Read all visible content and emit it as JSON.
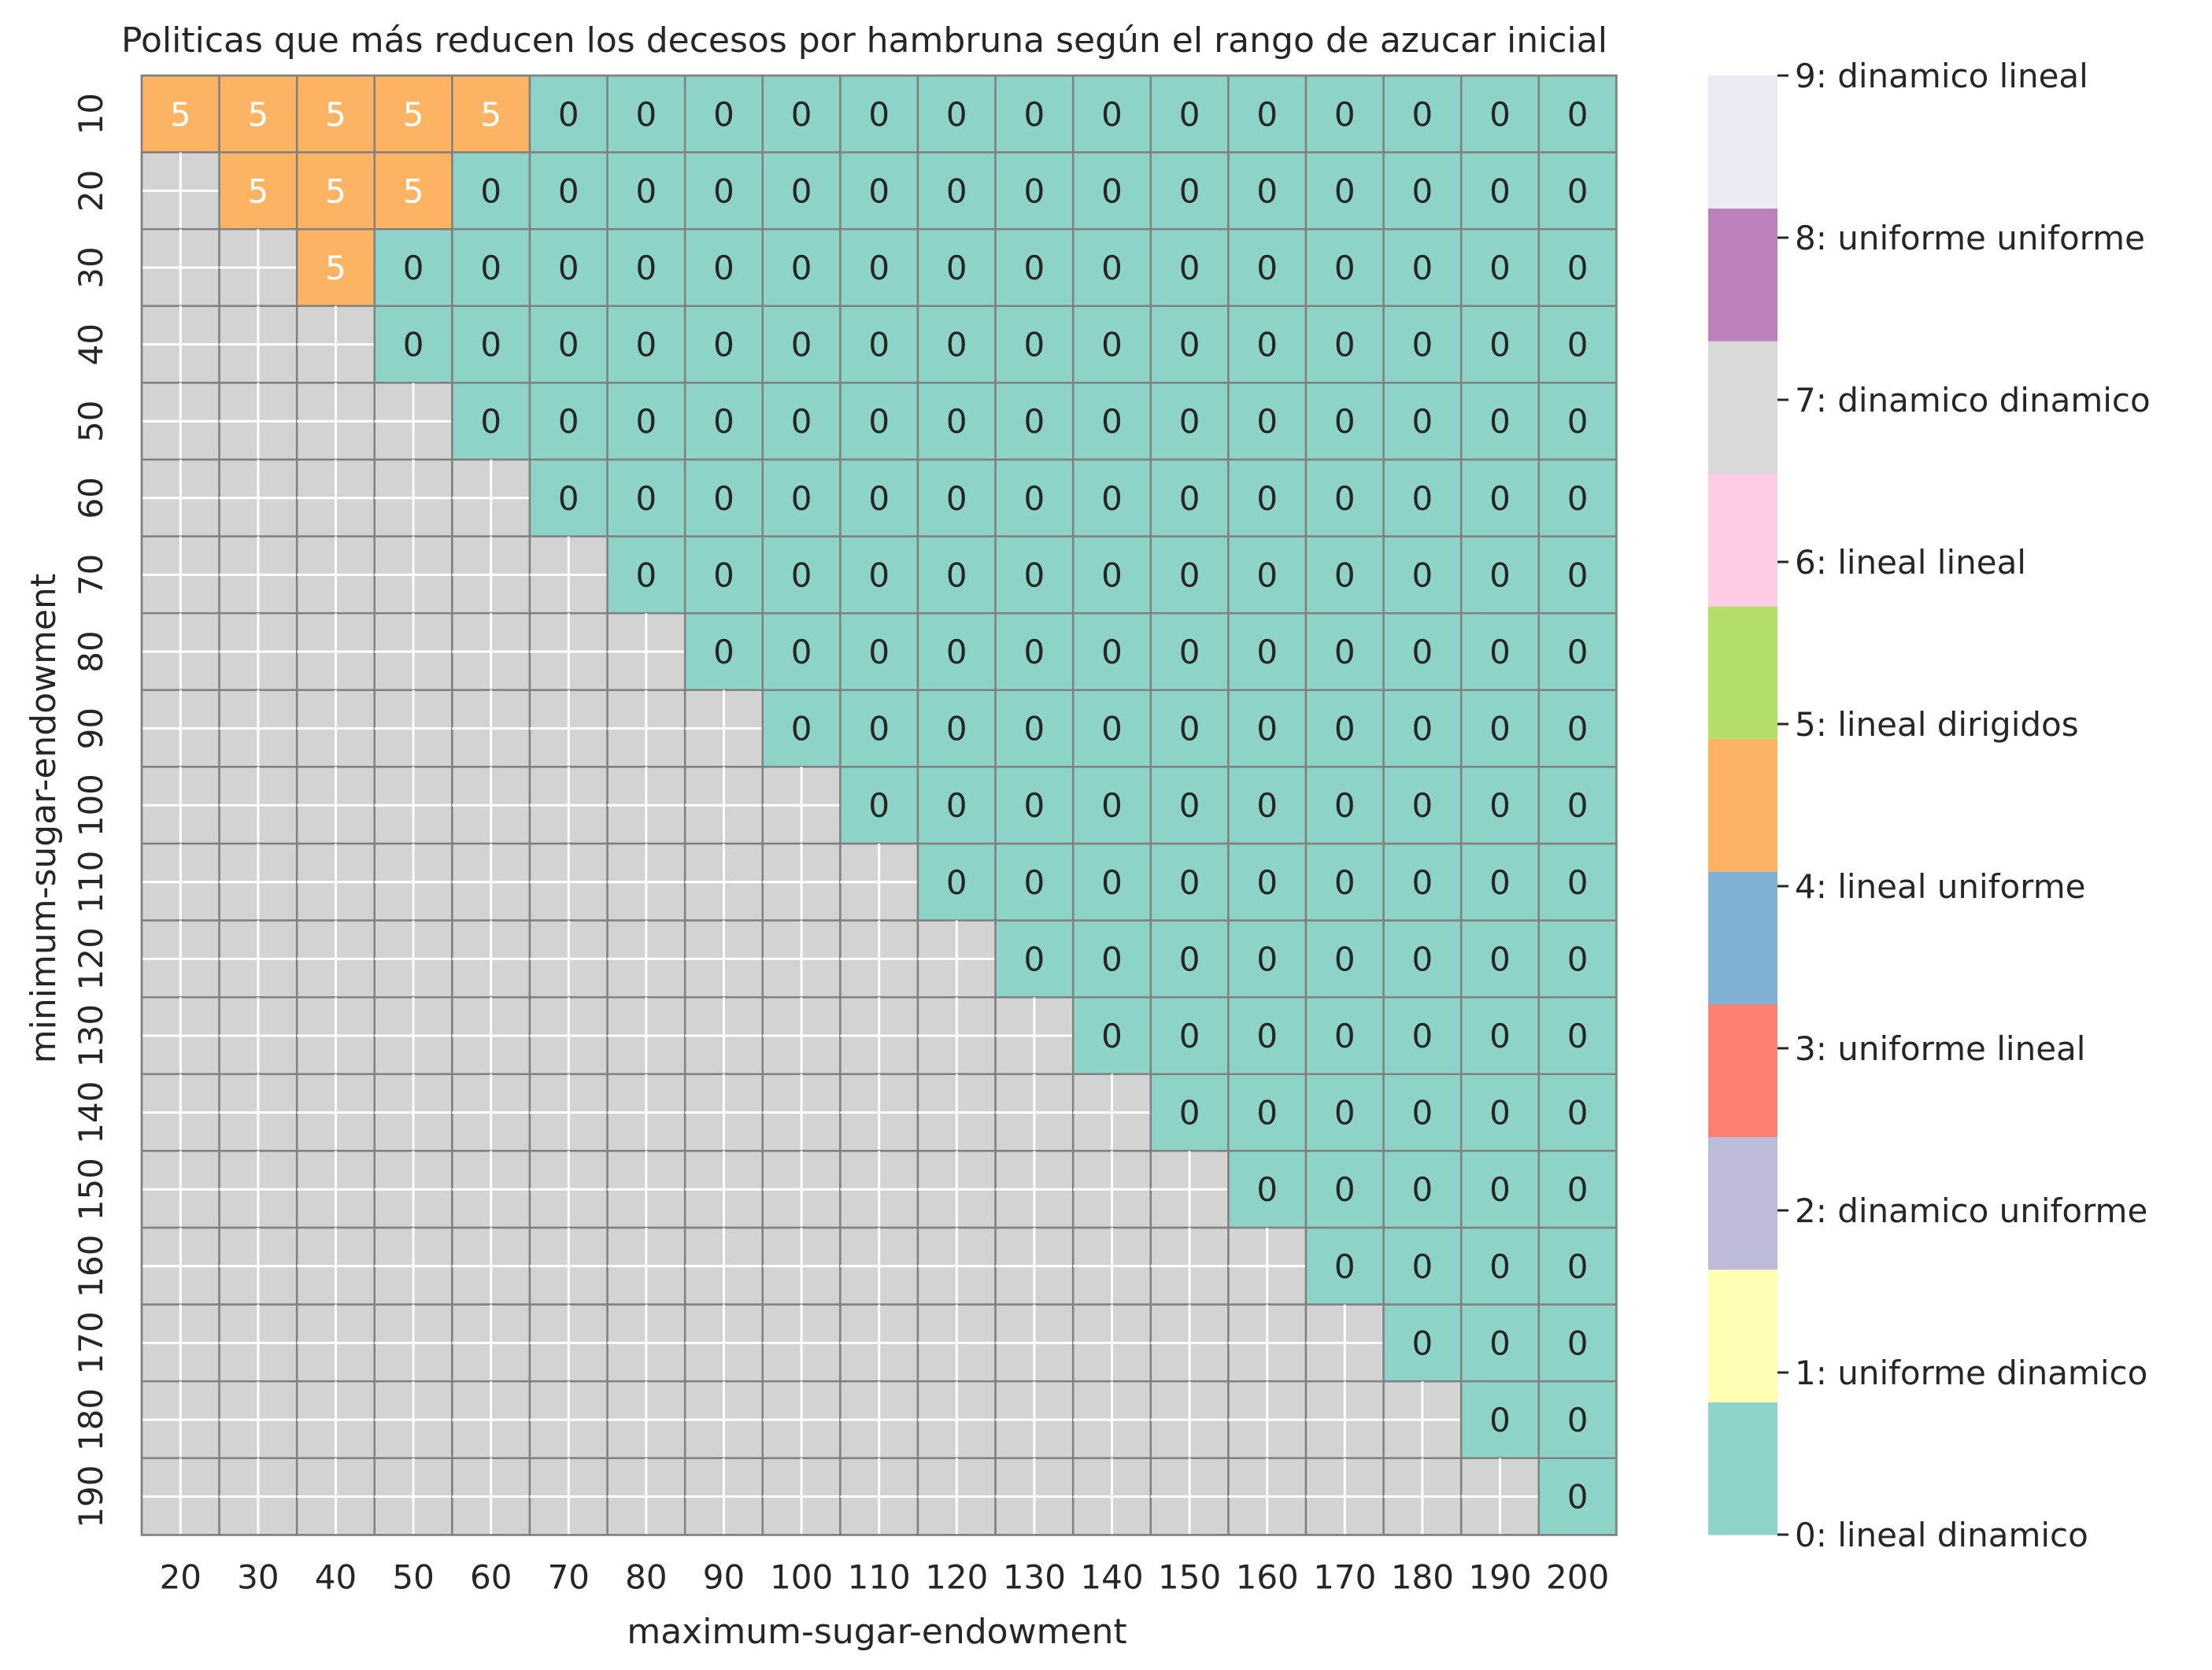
{
  "chart_data": {
    "type": "heatmap",
    "title": "Politicas que más reducen los decesos por hambruna según el rango de azucar inicial",
    "xlabel": "maximum-sugar-endowment",
    "ylabel": "minimum-sugar-endowment",
    "x_ticks": [
      "20",
      "30",
      "40",
      "50",
      "60",
      "70",
      "80",
      "90",
      "100",
      "110",
      "120",
      "130",
      "140",
      "150",
      "160",
      "170",
      "180",
      "190",
      "200"
    ],
    "y_ticks": [
      "10",
      "20",
      "30",
      "40",
      "50",
      "60",
      "70",
      "80",
      "90",
      "100",
      "110",
      "120",
      "130",
      "140",
      "150",
      "160",
      "170",
      "180",
      "190"
    ],
    "x_values": [
      20,
      30,
      40,
      50,
      60,
      70,
      80,
      90,
      100,
      110,
      120,
      130,
      140,
      150,
      160,
      170,
      180,
      190,
      200
    ],
    "y_values": [
      10,
      20,
      30,
      40,
      50,
      60,
      70,
      80,
      90,
      100,
      110,
      120,
      130,
      140,
      150,
      160,
      170,
      180,
      190
    ],
    "values": [
      [
        5,
        5,
        5,
        5,
        5,
        0,
        0,
        0,
        0,
        0,
        0,
        0,
        0,
        0,
        0,
        0,
        0,
        0,
        0
      ],
      [
        null,
        5,
        5,
        5,
        0,
        0,
        0,
        0,
        0,
        0,
        0,
        0,
        0,
        0,
        0,
        0,
        0,
        0,
        0
      ],
      [
        null,
        null,
        5,
        0,
        0,
        0,
        0,
        0,
        0,
        0,
        0,
        0,
        0,
        0,
        0,
        0,
        0,
        0,
        0
      ],
      [
        null,
        null,
        null,
        0,
        0,
        0,
        0,
        0,
        0,
        0,
        0,
        0,
        0,
        0,
        0,
        0,
        0,
        0,
        0
      ],
      [
        null,
        null,
        null,
        null,
        0,
        0,
        0,
        0,
        0,
        0,
        0,
        0,
        0,
        0,
        0,
        0,
        0,
        0,
        0
      ],
      [
        null,
        null,
        null,
        null,
        null,
        0,
        0,
        0,
        0,
        0,
        0,
        0,
        0,
        0,
        0,
        0,
        0,
        0,
        0
      ],
      [
        null,
        null,
        null,
        null,
        null,
        null,
        0,
        0,
        0,
        0,
        0,
        0,
        0,
        0,
        0,
        0,
        0,
        0,
        0
      ],
      [
        null,
        null,
        null,
        null,
        null,
        null,
        null,
        0,
        0,
        0,
        0,
        0,
        0,
        0,
        0,
        0,
        0,
        0,
        0
      ],
      [
        null,
        null,
        null,
        null,
        null,
        null,
        null,
        null,
        0,
        0,
        0,
        0,
        0,
        0,
        0,
        0,
        0,
        0,
        0
      ],
      [
        null,
        null,
        null,
        null,
        null,
        null,
        null,
        null,
        null,
        0,
        0,
        0,
        0,
        0,
        0,
        0,
        0,
        0,
        0
      ],
      [
        null,
        null,
        null,
        null,
        null,
        null,
        null,
        null,
        null,
        null,
        0,
        0,
        0,
        0,
        0,
        0,
        0,
        0,
        0
      ],
      [
        null,
        null,
        null,
        null,
        null,
        null,
        null,
        null,
        null,
        null,
        null,
        0,
        0,
        0,
        0,
        0,
        0,
        0,
        0
      ],
      [
        null,
        null,
        null,
        null,
        null,
        null,
        null,
        null,
        null,
        null,
        null,
        null,
        0,
        0,
        0,
        0,
        0,
        0,
        0
      ],
      [
        null,
        null,
        null,
        null,
        null,
        null,
        null,
        null,
        null,
        null,
        null,
        null,
        null,
        0,
        0,
        0,
        0,
        0,
        0
      ],
      [
        null,
        null,
        null,
        null,
        null,
        null,
        null,
        null,
        null,
        null,
        null,
        null,
        null,
        null,
        0,
        0,
        0,
        0,
        0
      ],
      [
        null,
        null,
        null,
        null,
        null,
        null,
        null,
        null,
        null,
        null,
        null,
        null,
        null,
        null,
        null,
        0,
        0,
        0,
        0
      ],
      [
        null,
        null,
        null,
        null,
        null,
        null,
        null,
        null,
        null,
        null,
        null,
        null,
        null,
        null,
        null,
        null,
        0,
        0,
        0
      ],
      [
        null,
        null,
        null,
        null,
        null,
        null,
        null,
        null,
        null,
        null,
        null,
        null,
        null,
        null,
        null,
        null,
        null,
        0,
        0
      ],
      [
        null,
        null,
        null,
        null,
        null,
        null,
        null,
        null,
        null,
        null,
        null,
        null,
        null,
        null,
        null,
        null,
        null,
        null,
        0
      ]
    ],
    "colorbar": {
      "labels": [
        "0: lineal dinamico",
        "1: uniforme dinamico",
        "2: dinamico uniforme",
        "3: uniforme lineal",
        "4: lineal uniforme",
        "5: lineal dirigidos",
        "6: lineal lineal",
        "7: dinamico dinamico",
        "8: uniforme uniforme",
        "9: dinamico lineal"
      ],
      "colors": [
        "#8dd3c7",
        "#ffffb3",
        "#bebada",
        "#fb8072",
        "#80b1d3",
        "#fdb462",
        "#b3de69",
        "#fccde5",
        "#d9d9d9",
        "#bc80bd",
        "#eaeaf2"
      ]
    },
    "colors": {
      "empty_cell": "#d3d3d3",
      "cell_border": "#808080",
      "empty_grid": "#ffffff",
      "annotation_on_0": "#262626",
      "annotation_on_5": "#ffffff"
    }
  }
}
